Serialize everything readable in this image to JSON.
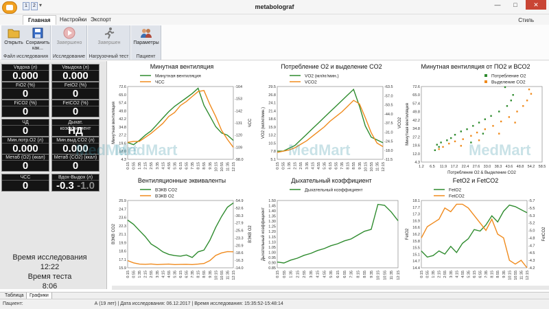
{
  "window": {
    "title": "metabolograf",
    "minimize": "—",
    "maximize": "□",
    "close": "✕"
  },
  "quick_access": [
    "1",
    "2"
  ],
  "ribbon": {
    "tabs": [
      "Главная",
      "Настройки",
      "Экспорт"
    ],
    "style_label": "Стиль",
    "groups": [
      {
        "label": "Файл исследования",
        "buttons": [
          "Открыть",
          "Сохранить как..."
        ]
      },
      {
        "label": "Исследование",
        "buttons": [
          "Завершено"
        ]
      },
      {
        "label": "Нагрузочный тест",
        "buttons": [
          "Завершен"
        ]
      },
      {
        "label": "Пациент",
        "buttons": [
          "Параметры"
        ]
      }
    ]
  },
  "metrics": [
    {
      "label": "Vвдоха (л)",
      "value": "0.000"
    },
    {
      "label": "Vвыдоха (л)",
      "value": "0.000"
    },
    {
      "label": "FiO2 (%)",
      "value": "0"
    },
    {
      "label": "FetO2 (%)",
      "value": "0"
    },
    {
      "label": "FiCO2 (%)",
      "value": "0"
    },
    {
      "label": "FetCO2 (%)",
      "value": "0"
    },
    {
      "label": "ЧД",
      "value": "0"
    },
    {
      "label": "Дыхат. коэффициент",
      "value": "НД"
    },
    {
      "label": "Мин.потр.O2 (л)",
      "value": "0.000"
    },
    {
      "label": "Мин.выд.CO2 (л)",
      "value": "0.000"
    },
    {
      "label": "Метаб (O2) (ккал)",
      "value": "0"
    },
    {
      "label": "Метаб (CO2) (ккал)",
      "value": "0"
    },
    {
      "label": "ЧСС",
      "value": "0"
    },
    {
      "label": "Вдох-Выдох (л)",
      "value": "-0.3",
      "value_dim": "-1.0"
    }
  ],
  "timers": {
    "study_label": "Время исследования",
    "study_value": "12:22",
    "test_label": "Время теста",
    "test_value": "8:06"
  },
  "watermark": "MedMart",
  "colors": {
    "green": "#2e8b2e",
    "orange": "#f08a1c"
  },
  "chart_data": [
    {
      "type": "line",
      "title": "Минутная вентиляция",
      "ylabel": "Минутная вентиляция",
      "y2label": "ЧСС",
      "legend": [
        "Минутная вентиляция",
        "ЧСС"
      ],
      "x": [
        "0:15",
        "0:55",
        "1:35",
        "2:15",
        "2:55",
        "3:35",
        "4:15",
        "4:55",
        "5:35",
        "6:15",
        "6:55",
        "7:35",
        "8:15",
        "8:55",
        "9:35",
        "10:15",
        "10:55",
        "11:35",
        "12:15"
      ],
      "ylim": [
        4.3,
        72.6
      ],
      "yticks": [
        "4.3",
        "12.0",
        "19.6",
        "27.2",
        "34.8",
        "42.2",
        "49.8",
        "57.4",
        "65.0",
        "72.6"
      ],
      "y2lim": [
        95,
        168
      ],
      "y2ticks": [
        "-164",
        "-153",
        "-142",
        "-131",
        "-120",
        "-109",
        "-98.0"
      ],
      "series": [
        {
          "name": "Минутная вентиляция",
          "color": "#2e8b2e",
          "values": [
            20,
            18,
            22,
            27,
            31,
            37,
            43,
            49,
            54,
            58,
            62,
            66,
            71,
            55,
            45,
            35,
            29,
            27,
            22
          ]
        },
        {
          "name": "ЧСС",
          "color": "#f08a1c",
          "values": [
            112,
            113,
            113,
            117,
            121,
            126,
            131,
            138,
            142,
            149,
            153,
            158,
            163,
            164,
            150,
            138,
            124,
            115,
            107
          ]
        }
      ]
    },
    {
      "type": "line",
      "title": "Потребление O2 и выделение CO2",
      "ylabel": "VO2 (мл/кг/мин.)",
      "y2label": "VCO2",
      "legend": [
        "VO2 (мл/кг/мин.)",
        "VCO2"
      ],
      "x": [
        "0:15",
        "0:55",
        "1:35",
        "2:15",
        "2:55",
        "3:35",
        "4:15",
        "4:55",
        "5:35",
        "6:15",
        "6:55",
        "7:35",
        "8:15",
        "8:55",
        "9:35",
        "10:15",
        "10:55",
        "11:35",
        "12:15"
      ],
      "ylim": [
        5.1,
        31.0
      ],
      "yticks": [
        "5.1",
        "7.8",
        "10.5",
        "13.2",
        "15.9",
        "18.6",
        "21.4",
        "24.1",
        "26.8",
        "29.5"
      ],
      "y2lim": [
        4,
        67
      ],
      "y2ticks": [
        "-63.5",
        "-57.0",
        "-50.5",
        "-44.0",
        "-37.5",
        "-31.0",
        "-24.5",
        "-18.0",
        "-11.5"
      ],
      "series": [
        {
          "name": "VO2 (мл/кг/мин.)",
          "color": "#2e8b2e",
          "values": [
            8,
            8,
            9,
            10,
            12,
            14,
            16,
            18,
            20,
            22,
            24,
            26,
            28,
            30,
            24,
            17,
            13,
            12,
            11
          ]
        },
        {
          "name": "VCO2",
          "color": "#f08a1c",
          "values": [
            10,
            11,
            12,
            14,
            17,
            20,
            24,
            28,
            32,
            37,
            41,
            45,
            50,
            55,
            52,
            40,
            27,
            18,
            15
          ]
        }
      ]
    },
    {
      "type": "scatter",
      "title": "Минутная вентиляция от ПО2 и ВСО2",
      "xlabel": "Потребление O2 & Выделение CO2",
      "ylabel": "Минутная вентиляция",
      "legend": [
        "Потребление O2",
        "Выделение CO2"
      ],
      "xlim": [
        1.2,
        61.5
      ],
      "xticks": [
        "1.2",
        "6.5",
        "11.9",
        "17.2",
        "22.4",
        "27.6",
        "33.0",
        "38.3",
        "43.6",
        "48.8",
        "54.2",
        "58.5"
      ],
      "ylim": [
        4.3,
        72.6
      ],
      "yticks": [
        "4.3",
        "12.0",
        "19.6",
        "27.2",
        "34.8",
        "42.2",
        "49.8",
        "57.4",
        "65.0",
        "72.6"
      ],
      "series": [
        {
          "name": "Потребление O2",
          "color": "#2e8b2e",
          "points": [
            [
              8,
              15
            ],
            [
              9,
              20
            ],
            [
              10,
              18
            ],
            [
              11,
              22
            ],
            [
              14,
              24
            ],
            [
              16,
              26
            ],
            [
              18,
              29
            ],
            [
              21,
              32
            ],
            [
              24,
              34
            ],
            [
              27,
              37
            ],
            [
              30,
              40
            ],
            [
              33,
              43
            ],
            [
              36,
              46
            ],
            [
              40,
              50
            ],
            [
              44,
              55
            ],
            [
              46,
              60
            ],
            [
              47,
              65
            ],
            [
              43,
              72
            ],
            [
              32,
              30
            ],
            [
              26,
              22
            ]
          ]
        },
        {
          "name": "Выделение CO2",
          "color": "#f08a1c",
          "points": [
            [
              10,
              16
            ],
            [
              12,
              18
            ],
            [
              15,
              21
            ],
            [
              18,
              23
            ],
            [
              22,
              25
            ],
            [
              26,
              28
            ],
            [
              29,
              31
            ],
            [
              33,
              34
            ],
            [
              37,
              37
            ],
            [
              41,
              41
            ],
            [
              45,
              45
            ],
            [
              49,
              50
            ],
            [
              52,
              55
            ],
            [
              54,
              60
            ],
            [
              56,
              66
            ],
            [
              55,
              70
            ],
            [
              48,
              40
            ],
            [
              40,
              30
            ],
            [
              30,
              24
            ],
            [
              21,
              19
            ]
          ]
        }
      ]
    },
    {
      "type": "line",
      "title": "Вентиляционные эквиваленты",
      "ylabel": "ВЭКВ CO2",
      "y2label": "ВЭКВ O2",
      "legend": [
        "ВЭКВ CO2",
        "ВЭКВ O2"
      ],
      "x": [
        "0:15",
        "0:55",
        "1:35",
        "2:15",
        "2:55",
        "3:35",
        "4:15",
        "4:55",
        "5:35",
        "6:15",
        "6:55",
        "7:35",
        "8:15",
        "8:55",
        "9:35",
        "10:15",
        "10:55",
        "11:35",
        "12:15"
      ],
      "ylim": [
        15.0,
        26.0
      ],
      "yticks": [
        "15.9",
        "17.1",
        "18.6",
        "19.9",
        "21.1",
        "22.3",
        "23.6",
        "24.7",
        "25.9"
      ],
      "y2lim": [
        14,
        56
      ],
      "y2ticks": [
        "-54.9",
        "-52.6",
        "-30.3",
        "-27.9",
        "-25.6",
        "-23.3",
        "-20.9",
        "-18.6",
        "-16.3",
        "-14.0"
      ],
      "series": [
        {
          "name": "ВЭКВ CO2",
          "color": "#2e8b2e",
          "values": [
            22.8,
            22.1,
            21.1,
            20.1,
            18.9,
            18.3,
            17.6,
            17.2,
            17.0,
            16.9,
            17.1,
            16.7,
            17.6,
            17.9,
            19.5,
            21.6,
            23.4,
            24.9,
            25.6
          ]
        },
        {
          "name": "ВЭКВ O2",
          "color": "#f08a1c",
          "values": [
            18.5,
            17.1,
            16.3,
            16.2,
            16.4,
            16.0,
            16.2,
            16.3,
            16.0,
            16.1,
            16.2,
            16.0,
            16.3,
            16.7,
            18.5,
            21.7,
            23.3,
            24.1,
            24.0
          ]
        }
      ]
    },
    {
      "type": "line",
      "title": "Дыхательный коэффициент",
      "ylabel": "Дыхательный коэффициент",
      "legend": [
        "Дыхательный коэффициент"
      ],
      "x": [
        "0:15",
        "0:55",
        "1:35",
        "2:15",
        "2:55",
        "3:35",
        "4:15",
        "4:55",
        "5:35",
        "6:15",
        "6:55",
        "7:35",
        "8:15",
        "8:55",
        "9:35",
        "10:15",
        "10:55",
        "11:35",
        "12:15"
      ],
      "ylim": [
        0.82,
        1.52
      ],
      "yticks": [
        "0.85",
        "0.90",
        "0.95",
        "1.00",
        "1.05",
        "1.10",
        "1.15",
        "1.20",
        "1.25",
        "1.30",
        "1.35",
        "1.40",
        "1.45",
        "1.50"
      ],
      "series": [
        {
          "name": "Дыхательный коэффициент",
          "color": "#2e8b2e",
          "values": [
            0.88,
            0.87,
            0.9,
            0.92,
            0.95,
            0.97,
            1.0,
            1.02,
            1.05,
            1.07,
            1.1,
            1.12,
            1.16,
            1.2,
            1.22,
            1.48,
            1.47,
            1.4,
            1.31
          ]
        }
      ]
    },
    {
      "type": "line",
      "title": "FetO2 и FetCO2",
      "ylabel": "FetO2",
      "y2label": "FetCO2",
      "legend": [
        "FetO2",
        "FetCO2"
      ],
      "x": [
        "0:15",
        "0:55",
        "1:35",
        "2:15",
        "2:55",
        "3:35",
        "4:15",
        "4:55",
        "5:35",
        "6:15",
        "6:55",
        "7:35",
        "8:15",
        "8:55",
        "9:35",
        "10:15",
        "10:55",
        "11:35",
        "12:15"
      ],
      "ylim": [
        14.2,
        18.6
      ],
      "yticks": [
        "14.4",
        "14.7",
        "15.1",
        "15.5",
        "15.8",
        "16.2",
        "16.6",
        "16.9",
        "17.3",
        "17.7",
        "18.1"
      ],
      "y2lim": [
        4.0,
        5.8
      ],
      "y2ticks": [
        "-5.7",
        "-5.5",
        "-5.3",
        "-5.2",
        "-5.0",
        "-4.8",
        "-4.7",
        "-4.5",
        "-4.3",
        "-4.2"
      ],
      "series": [
        {
          "name": "FetO2",
          "color": "#2e8b2e",
          "values": [
            15.3,
            14.9,
            15.0,
            15.3,
            15.1,
            15.6,
            15.2,
            15.8,
            16.1,
            16.7,
            16.6,
            17.0,
            17.6,
            17.2,
            17.9,
            18.3,
            18.2,
            18.0,
            17.8
          ]
        },
        {
          "name": "FetCO2",
          "color": "#f08a1c",
          "values": [
            4.8,
            5.1,
            5.2,
            5.3,
            5.6,
            5.5,
            5.7,
            5.7,
            5.6,
            5.4,
            5.2,
            5.0,
            5.3,
            4.9,
            4.8,
            4.2,
            4.1,
            4.2,
            4.0
          ]
        }
      ]
    }
  ],
  "bottom_tabs": [
    "Таблица",
    "Графики"
  ],
  "status": {
    "patient_label": "Пациент:",
    "patient_age": "А (19 лет)",
    "study_date": "| Дата исследования: 06.12.2017",
    "study_time": "| Время исследования: 15:35:52-15:48:14"
  }
}
